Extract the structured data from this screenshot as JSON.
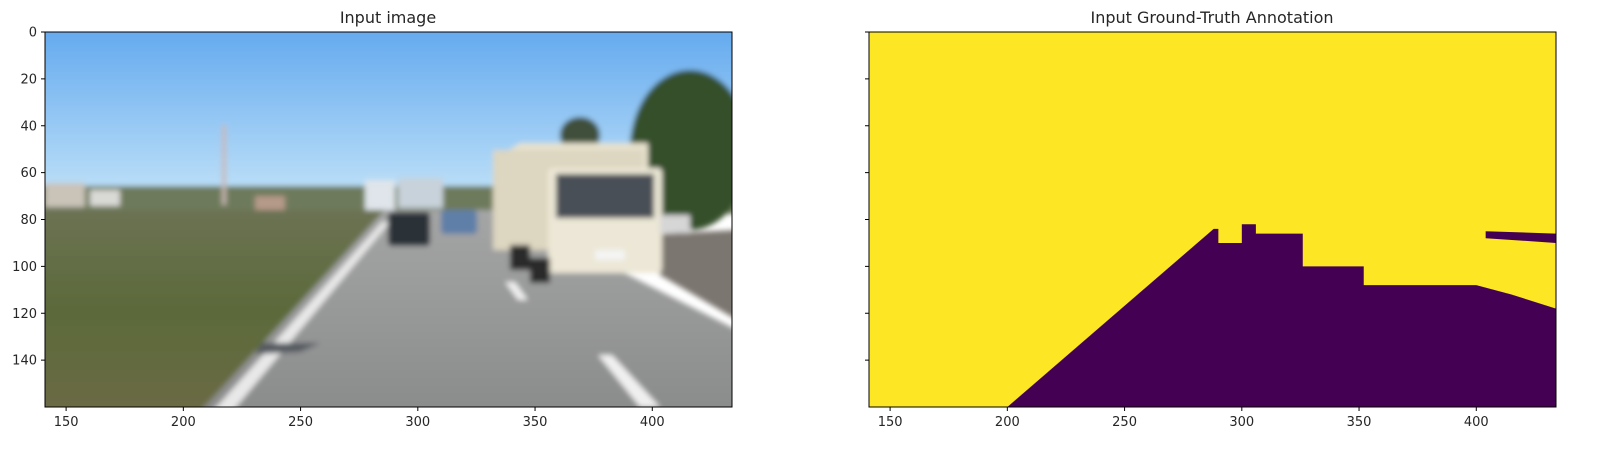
{
  "chart_data": [
    {
      "type": "image",
      "title": "Input image",
      "xlabel": "",
      "ylabel": "",
      "xlim": [
        141,
        434
      ],
      "ylim": [
        160,
        0
      ],
      "x_ticks": [
        150,
        200,
        250,
        300,
        350,
        400
      ],
      "y_ticks": [
        0,
        20,
        40,
        60,
        80,
        100,
        120,
        140
      ],
      "y_tick_labels_visible": true,
      "grid": false,
      "description_colors": {
        "sky_top": "#6aaff0",
        "sky_horizon": "#b8dcf8",
        "grass": "#5d6b3c",
        "road": "#8e8f8f",
        "truck": "#e9e4cf",
        "trees": "#2f4a28"
      }
    },
    {
      "type": "heatmap",
      "title": "Input Ground-Truth Annotation",
      "xlabel": "",
      "ylabel": "",
      "xlim": [
        141,
        434
      ],
      "ylim": [
        160,
        0
      ],
      "x_ticks": [
        150,
        200,
        250,
        300,
        350,
        400
      ],
      "y_ticks": [
        0,
        20,
        40,
        60,
        80,
        100,
        120,
        140
      ],
      "y_tick_labels_visible": false,
      "grid": false,
      "classes": [
        {
          "value": 0,
          "color": "#440154"
        },
        {
          "value": 1,
          "color": "#fde725"
        }
      ],
      "road_region_boundary": [
        [
          200,
          160
        ],
        [
          288,
          84
        ],
        [
          290,
          84
        ],
        [
          290,
          90
        ],
        [
          300,
          90
        ],
        [
          300,
          82
        ],
        [
          306,
          82
        ],
        [
          306,
          86
        ],
        [
          326,
          86
        ],
        [
          326,
          100
        ],
        [
          352,
          100
        ],
        [
          352,
          108
        ],
        [
          360,
          108
        ],
        [
          400,
          108
        ],
        [
          415,
          112
        ],
        [
          434,
          118
        ],
        [
          434,
          160
        ]
      ],
      "far_road_strip": [
        [
          404,
          85
        ],
        [
          434,
          86
        ],
        [
          434,
          90
        ],
        [
          404,
          88
        ]
      ]
    }
  ]
}
